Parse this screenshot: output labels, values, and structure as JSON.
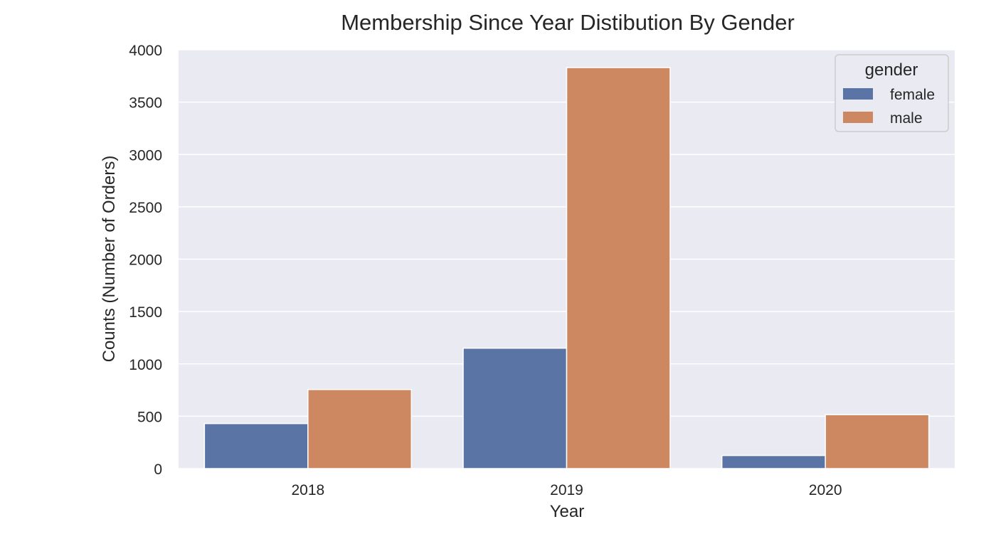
{
  "chart_data": {
    "type": "bar",
    "title": "Membership Since Year Distibution By Gender",
    "xlabel": "Year",
    "ylabel": "Counts (Number of Orders)",
    "categories": [
      "2018",
      "2019",
      "2020"
    ],
    "series": [
      {
        "name": "female",
        "values": [
          430,
          1150,
          125
        ],
        "color": "#5A74A6"
      },
      {
        "name": "male",
        "values": [
          755,
          3830,
          515
        ],
        "color": "#CD8862"
      }
    ],
    "ylim": [
      0,
      4000
    ],
    "yticks": [
      0,
      500,
      1000,
      1500,
      2000,
      2500,
      3000,
      3500,
      4000
    ],
    "grid": true,
    "legend": {
      "title": "gender",
      "position": "top-right"
    },
    "colors": {
      "background": "#EAEAF2",
      "grid": "#FFFFFF"
    }
  }
}
